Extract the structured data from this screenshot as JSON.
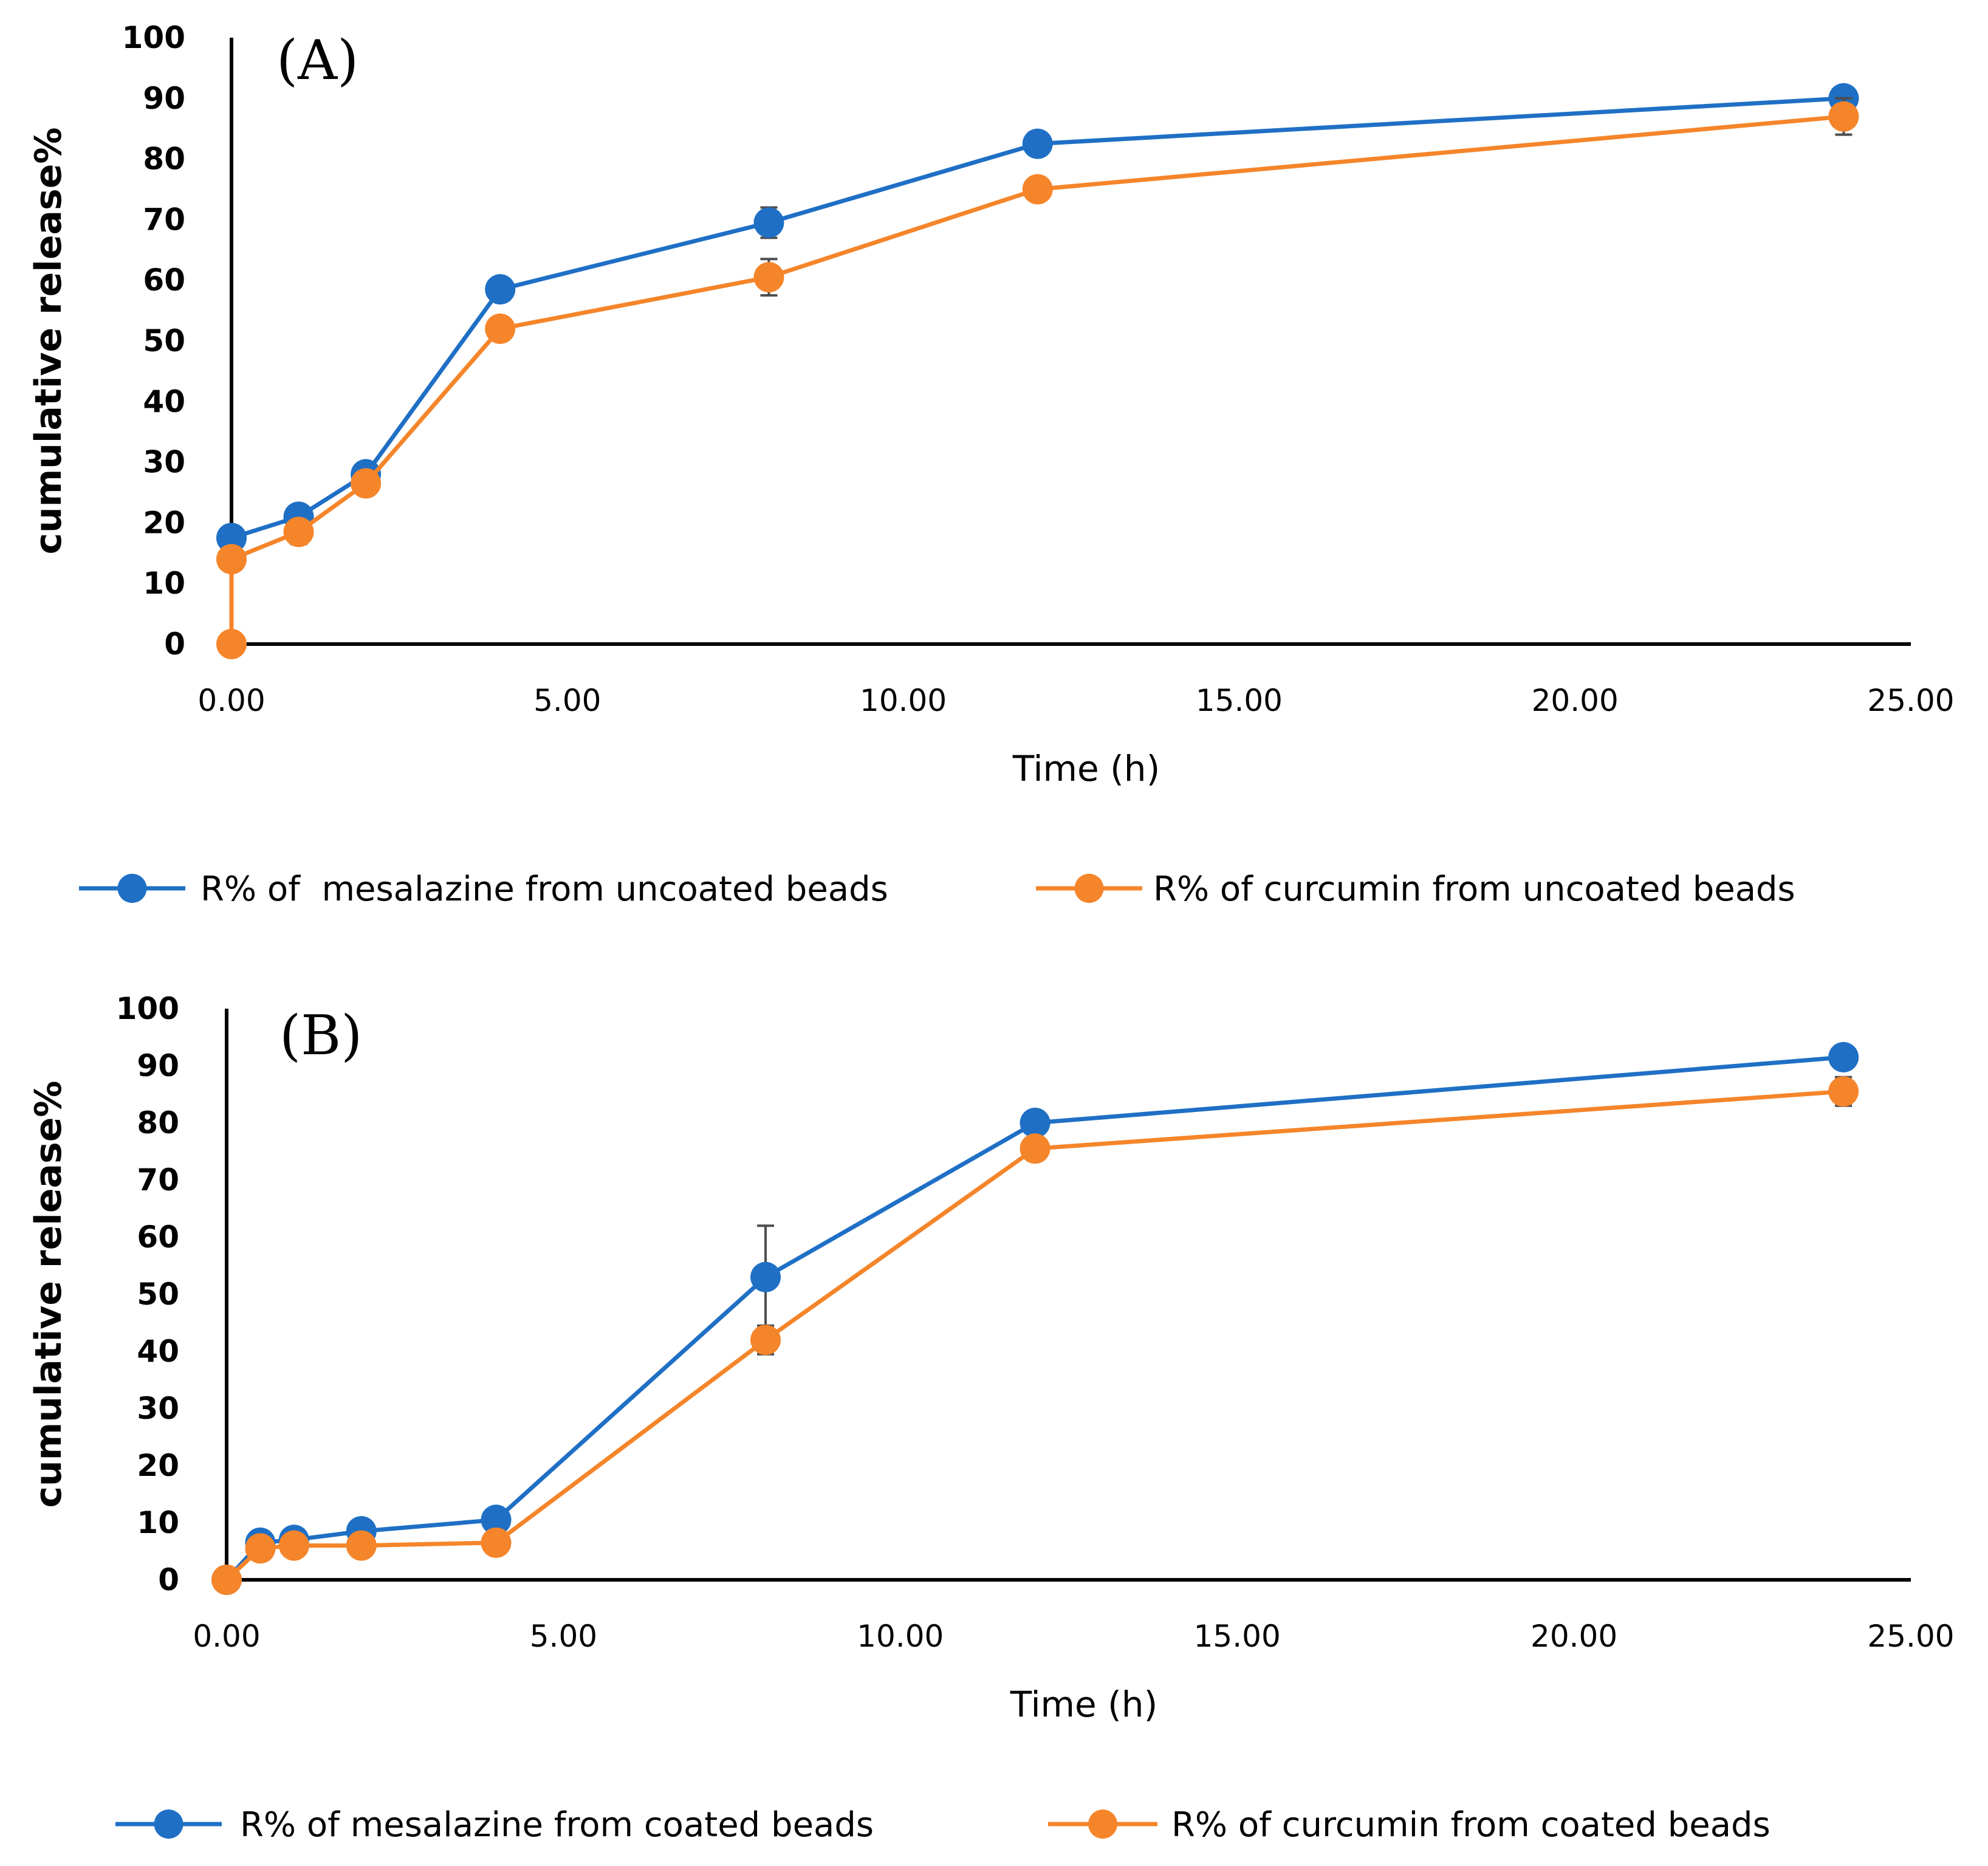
{
  "colors": {
    "series1": "#1f6fc5",
    "series2": "#f5852a",
    "axis": "#000000",
    "errorbar": "#4d4d4d"
  },
  "chart_data": [
    {
      "type": "line",
      "panel_label": "(A)",
      "xlabel": "Time (h)",
      "ylabel": "cumulative release%",
      "xlim": [
        0,
        25
      ],
      "ylim": [
        0,
        100
      ],
      "x_ticks": [
        "0.00",
        "5.00",
        "10.00",
        "15.00",
        "20.00",
        "25.00"
      ],
      "y_ticks": [
        "0",
        "10",
        "20",
        "30",
        "40",
        "50",
        "60",
        "70",
        "80",
        "90",
        "100"
      ],
      "legend_position": "bottom",
      "series": [
        {
          "name": "R% of  mesalazine from uncoated beads",
          "x": [
            0,
            1,
            2,
            4,
            8,
            12,
            24
          ],
          "values": [
            17.5,
            21,
            28,
            58.5,
            69.5,
            82.5,
            90
          ],
          "errors": [
            0.8,
            1.2,
            1,
            1,
            2.5,
            1,
            1
          ]
        },
        {
          "name": "R% of curcumin from uncoated beads",
          "x": [
            0,
            0,
            1,
            2,
            4,
            8,
            12,
            24
          ],
          "values": [
            0,
            14,
            18.5,
            26.5,
            52,
            60.5,
            75,
            87
          ],
          "errors": [
            0,
            1,
            2,
            1.2,
            1.5,
            3,
            1,
            3
          ]
        }
      ]
    },
    {
      "type": "line",
      "panel_label": "(B)",
      "xlabel": "Time (h)",
      "ylabel": "cumulative release%",
      "xlim": [
        0,
        25
      ],
      "ylim": [
        0,
        100
      ],
      "x_ticks": [
        "0.00",
        "5.00",
        "10.00",
        "15.00",
        "20.00",
        "25.00"
      ],
      "y_ticks": [
        "0",
        "10",
        "20",
        "30",
        "40",
        "50",
        "60",
        "70",
        "80",
        "90",
        "100"
      ],
      "legend_position": "bottom",
      "series": [
        {
          "name": "R% of mesalazine from coated beads",
          "x": [
            0,
            0.5,
            1,
            2,
            4,
            8,
            12,
            24
          ],
          "values": [
            0,
            6.5,
            7,
            8.5,
            10.5,
            53,
            80,
            91.5
          ],
          "errors": [
            0,
            0.5,
            0.5,
            0.5,
            0.5,
            9,
            1.5,
            0.8
          ]
        },
        {
          "name": "R% of curcumin from coated beads",
          "x": [
            0,
            0.5,
            1,
            2,
            4,
            8,
            12,
            24
          ],
          "values": [
            0,
            5.5,
            6,
            6,
            6.5,
            42,
            75.5,
            85.5
          ],
          "errors": [
            0,
            0.5,
            0.5,
            0.5,
            0.5,
            2.5,
            2,
            2.5
          ]
        }
      ]
    }
  ]
}
